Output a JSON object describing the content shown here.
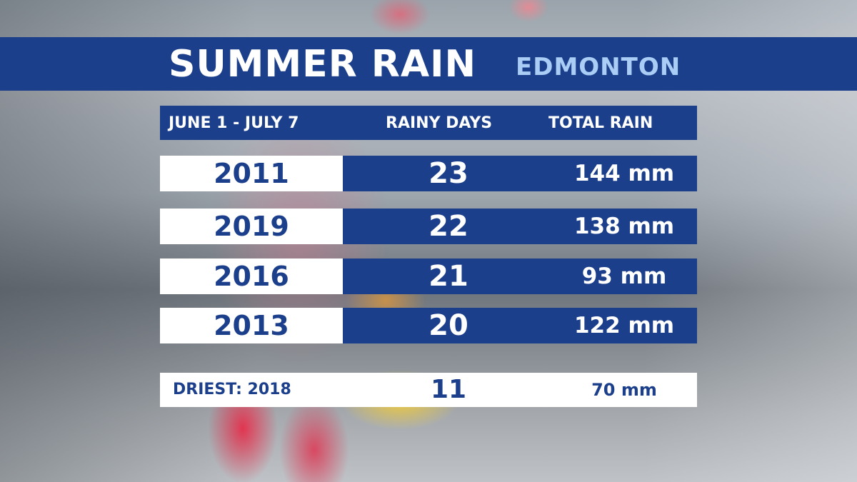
{
  "title": "SUMMER RAIN",
  "location": "EDMONTON",
  "chart_data": {
    "type": "table",
    "title": "SUMMER RAIN",
    "subtitle": "EDMONTON",
    "columns": [
      "JUNE 1 - JULY 7",
      "RAINY DAYS",
      "TOTAL RAIN"
    ],
    "rows": [
      {
        "year": "2011",
        "rainy_days": "23",
        "total_rain": "144 mm"
      },
      {
        "year": "2019",
        "rainy_days": "22",
        "total_rain": "138 mm"
      },
      {
        "year": "2016",
        "rainy_days": "21",
        "total_rain": "93 mm"
      },
      {
        "year": "2013",
        "rainy_days": "20",
        "total_rain": "122 mm"
      }
    ],
    "driest": {
      "label": "DRIEST:  2018",
      "rainy_days": "11",
      "total_rain": "70 mm"
    }
  },
  "colors": {
    "band_blue": "#1c3f8c",
    "title_text": "#ffffff",
    "location_text": "#a9cdf4",
    "row_white": "#ffffff"
  }
}
